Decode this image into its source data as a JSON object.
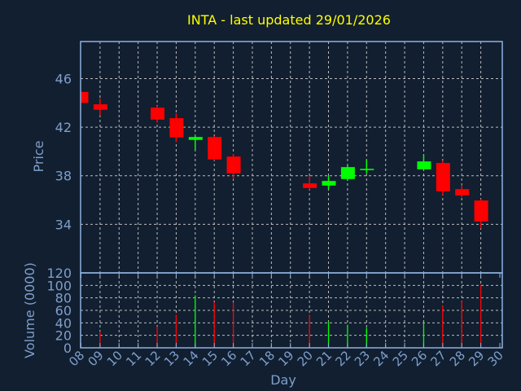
{
  "chart_data": {
    "type": "candlestick",
    "title": "INTA - last updated 29/01/2026",
    "xlabel": "Day",
    "ylabel": "Price",
    "volume_ylabel": "Volume (0000)",
    "x_ticks": [
      "08",
      "09",
      "10",
      "11",
      "12",
      "13",
      "14",
      "15",
      "16",
      "17",
      "18",
      "19",
      "20",
      "21",
      "22",
      "23",
      "24",
      "25",
      "26",
      "27",
      "28",
      "29",
      "30"
    ],
    "price_ticks": [
      34,
      38,
      42,
      46
    ],
    "price_ylim": [
      30,
      49.05
    ],
    "volume_ticks": [
      0,
      20,
      40,
      60,
      80,
      100,
      120
    ],
    "volume_ylim": [
      0,
      120
    ],
    "colors": {
      "up": "#00ff00",
      "down": "#ff0000",
      "title": "#ffff00",
      "axis": "#7f9fcc",
      "background": "#111f30"
    },
    "candles": [
      {
        "day": "08",
        "open": 44.9,
        "high": 44.9,
        "low": 44.0,
        "close": 44.0,
        "volume": null
      },
      {
        "day": "09",
        "open": 43.88,
        "high": 44.35,
        "low": 42.96,
        "close": 43.43,
        "volume": 26
      },
      {
        "day": "12",
        "open": 43.61,
        "high": 43.74,
        "low": 42.36,
        "close": 42.62,
        "volume": 34
      },
      {
        "day": "13",
        "open": 42.74,
        "high": 43.14,
        "low": 40.77,
        "close": 41.15,
        "volume": 53
      },
      {
        "day": "14",
        "open": 40.95,
        "high": 41.26,
        "low": 40.14,
        "close": 41.19,
        "volume": 84
      },
      {
        "day": "15",
        "open": 41.19,
        "high": 41.26,
        "low": 39.27,
        "close": 39.34,
        "volume": 73
      },
      {
        "day": "16",
        "open": 39.58,
        "high": 39.79,
        "low": 37.72,
        "close": 38.2,
        "volume": 73
      },
      {
        "day": "20",
        "open": 37.37,
        "high": 37.97,
        "low": 36.85,
        "close": 36.99,
        "volume": 53
      },
      {
        "day": "21",
        "open": 37.19,
        "high": 37.98,
        "low": 36.85,
        "close": 37.57,
        "volume": 43
      },
      {
        "day": "22",
        "open": 37.73,
        "high": 38.85,
        "low": 37.59,
        "close": 38.71,
        "volume": 37
      },
      {
        "day": "23",
        "open": 38.46,
        "high": 39.3,
        "low": 38.2,
        "close": 38.57,
        "volume": 32
      },
      {
        "day": "26",
        "open": 38.53,
        "high": 39.72,
        "low": 38.46,
        "close": 39.18,
        "volume": 41
      },
      {
        "day": "27",
        "open": 39.05,
        "high": 39.25,
        "low": 36.41,
        "close": 36.72,
        "volume": 68
      },
      {
        "day": "28",
        "open": 36.9,
        "high": 37.23,
        "low": 36.25,
        "close": 36.38,
        "volume": 75
      },
      {
        "day": "29",
        "open": 35.96,
        "high": 36.07,
        "low": 33.66,
        "close": 34.23,
        "volume": 101
      }
    ]
  }
}
